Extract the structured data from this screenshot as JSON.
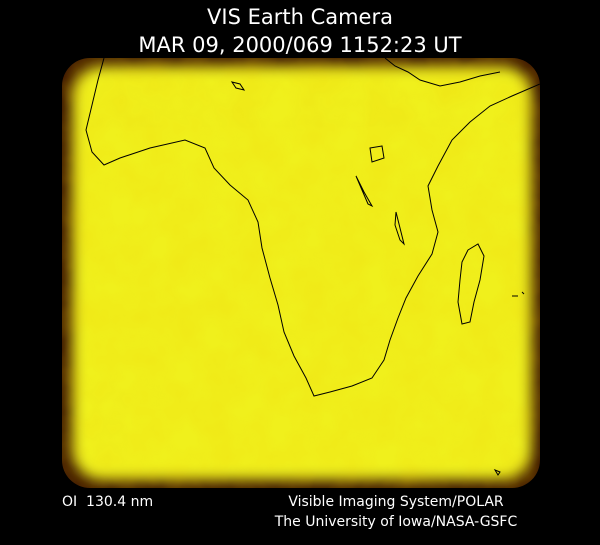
{
  "header": {
    "title": "VIS Earth Camera",
    "timestamp": "MAR 09, 2000/069 1152:23 UT"
  },
  "footer": {
    "filter": "OI  130.4 nm",
    "credit_lines": [
      "Visible Imaging System/POLAR",
      "The University of Iowa/NASA-GSFC"
    ]
  }
}
